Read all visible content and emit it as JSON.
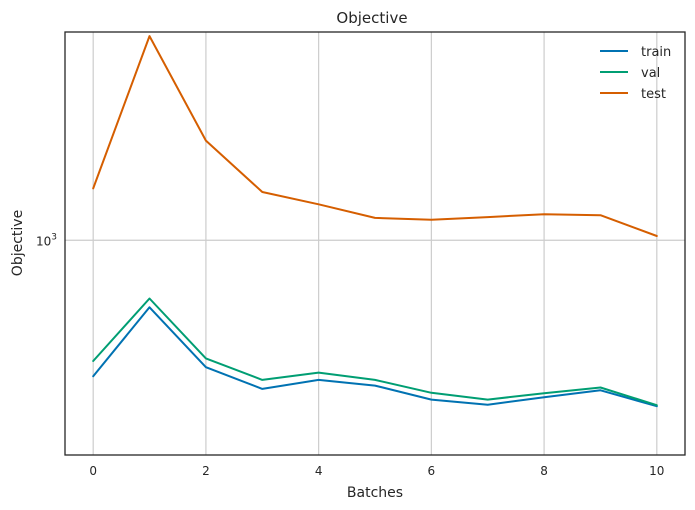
{
  "chart_data": {
    "type": "line",
    "title": "Objective",
    "xlabel": "Batches",
    "ylabel": "Objective",
    "y_scale": "log",
    "x": [
      0,
      1,
      2,
      3,
      4,
      5,
      6,
      7,
      8,
      9,
      10
    ],
    "xlim": [
      -0.5,
      10.5
    ],
    "ylim": [
      470,
      2080
    ],
    "x_ticks": [
      0,
      2,
      4,
      6,
      8,
      10
    ],
    "x_tick_labels": [
      "0",
      "2",
      "4",
      "6",
      "8",
      "10"
    ],
    "y_ticks": [
      1000
    ],
    "y_tick_labels": [
      {
        "base": "10",
        "exp": "3"
      }
    ],
    "grid": true,
    "legend_position": "top-right",
    "series": [
      {
        "name": "train",
        "color": "#0072b2",
        "values": [
          620,
          790,
          640,
          593,
          612,
          600,
          571,
          561,
          576,
          590,
          558
        ]
      },
      {
        "name": "val",
        "color": "#009e73",
        "values": [
          654,
          815,
          660,
          612,
          628,
          612,
          585,
          571,
          584,
          596,
          560
        ]
      },
      {
        "name": "test",
        "color": "#d55e00",
        "values": [
          1200,
          2050,
          1420,
          1185,
          1135,
          1082,
          1075,
          1085,
          1096,
          1092,
          1015
        ]
      }
    ]
  }
}
